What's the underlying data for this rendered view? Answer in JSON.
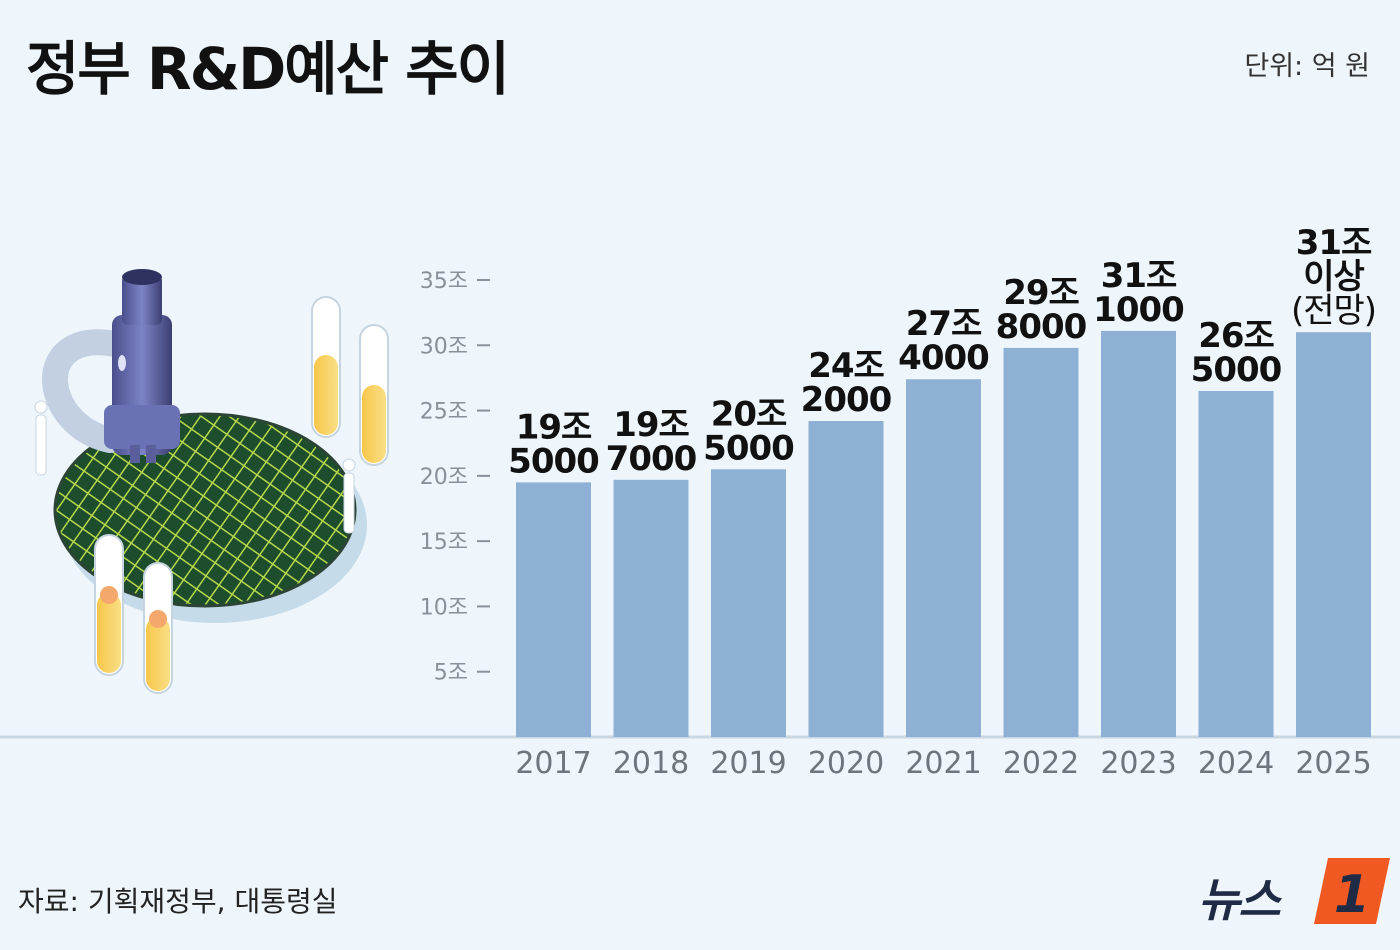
{
  "header": {
    "title": "정부 R&D예산 추이",
    "unit": "단위: 억 원"
  },
  "footer": {
    "source": "자료: 기획재정부, 대통령실",
    "logo_text": "뉴스",
    "logo_mark": "1"
  },
  "colors": {
    "bar": "#8eb0d4",
    "background": "#eef6fb",
    "baseline": "#c9d7e2",
    "logo_orange": "#f05a22",
    "logo_navy": "#1f2a44"
  },
  "illustration": {
    "icons": [
      "microscope-icon",
      "wafer-icon",
      "test-tube-icon",
      "scientist-icon"
    ]
  },
  "chart_data": {
    "type": "bar",
    "title": "정부 R&D예산 추이",
    "unit": "억 원",
    "categories": [
      "2017",
      "2018",
      "2019",
      "2020",
      "2021",
      "2022",
      "2023",
      "2024",
      "2025"
    ],
    "values": [
      195000,
      197000,
      205000,
      242000,
      274000,
      298000,
      311000,
      265000,
      310000
    ],
    "data_labels": [
      [
        "19조",
        "5000"
      ],
      [
        "19조",
        "7000"
      ],
      [
        "20조",
        "5000"
      ],
      [
        "24조",
        "2000"
      ],
      [
        "27조",
        "4000"
      ],
      [
        "29조",
        "8000"
      ],
      [
        "31조",
        "1000"
      ],
      [
        "26조",
        "5000"
      ],
      [
        "31조",
        "이상",
        "(전망)"
      ]
    ],
    "y_ticks": [
      {
        "value": 50000,
        "label": "5조"
      },
      {
        "value": 100000,
        "label": "10조"
      },
      {
        "value": 150000,
        "label": "15조"
      },
      {
        "value": 200000,
        "label": "20조"
      },
      {
        "value": 250000,
        "label": "25조"
      },
      {
        "value": 300000,
        "label": "30조"
      },
      {
        "value": 350000,
        "label": "35조"
      }
    ],
    "ylim": [
      0,
      350000
    ],
    "grid": false,
    "legend": "none"
  }
}
